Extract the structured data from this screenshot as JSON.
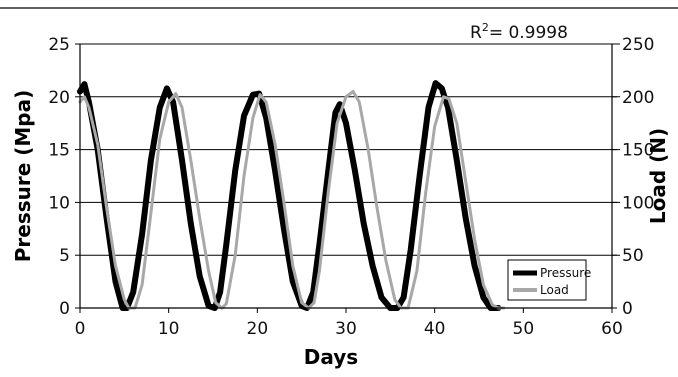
{
  "chart_data": {
    "type": "line",
    "annotation": {
      "label": "R",
      "sup": "2",
      "rest": "= 0.9998"
    },
    "xlabel": "Days",
    "ylabel_left": "Pressure (Mpa)",
    "ylabel_right": "Load (N)",
    "xlim": [
      0,
      60
    ],
    "ylim_left": [
      0,
      25
    ],
    "ylim_right": [
      0,
      250
    ],
    "x_ticks": [
      "0",
      "10",
      "20",
      "30",
      "40",
      "50",
      "60"
    ],
    "y_ticks_left": [
      "0",
      "5",
      "10",
      "15",
      "20",
      "25"
    ],
    "y_ticks_right": [
      "0",
      "50",
      "100",
      "150",
      "200",
      "250"
    ],
    "grid": "horizontal",
    "legend_position": "bottom-right",
    "series": [
      {
        "name": "Pressure",
        "axis": "left",
        "color": "#000000",
        "x": [
          0,
          0.5,
          1,
          2,
          3,
          4,
          4.8,
          5.3,
          6,
          7,
          8,
          9,
          9.8,
          10.5,
          11.5,
          12.5,
          13.5,
          14.5,
          15.2,
          15.8,
          16.5,
          17.5,
          18.5,
          19.5,
          20.2,
          21,
          22,
          23,
          24,
          25,
          25.6,
          26.3,
          27,
          28,
          28.8,
          29.3,
          30,
          31,
          32,
          33,
          34,
          35,
          35.8,
          36.5,
          37.3,
          38.3,
          39.3,
          40.1,
          40.8,
          41.5,
          42.5,
          43.5,
          44.5,
          45.5,
          46.3,
          47.2
        ],
        "y": [
          20.5,
          21.2,
          19.5,
          15,
          8.5,
          2.5,
          0,
          0,
          1.5,
          7,
          14,
          19,
          20.8,
          19.5,
          14,
          8,
          3,
          0.2,
          0,
          1.5,
          6,
          13,
          18.2,
          20.2,
          20.3,
          18,
          13,
          7.5,
          2.5,
          0.2,
          0,
          1.5,
          6,
          13,
          18.5,
          19.3,
          17.5,
          13,
          8,
          4,
          1,
          0,
          0,
          1,
          5.5,
          12.5,
          19,
          21.3,
          20.8,
          19,
          14,
          8.5,
          4,
          1,
          0,
          0
        ]
      },
      {
        "name": "Load",
        "axis": "right",
        "color": "#a8a8a8",
        "x": [
          0,
          0.5,
          1,
          2,
          3,
          4,
          5,
          5.5,
          6.2,
          7,
          8,
          9,
          10,
          10.8,
          11.5,
          12.5,
          13.5,
          14.5,
          15.3,
          16,
          16.5,
          17.5,
          18.5,
          19.5,
          20.3,
          21,
          22,
          23,
          24,
          25,
          25.8,
          26.4,
          27,
          28,
          29,
          30,
          30.8,
          31.5,
          32.5,
          33.5,
          34.5,
          35.5,
          36.2,
          37,
          38,
          39,
          40,
          41,
          41.6,
          42.5,
          43.5,
          44.5,
          45.5,
          46.5,
          47.2,
          47.8
        ],
        "y": [
          195,
          200,
          190,
          155,
          95,
          40,
          8,
          0,
          0,
          22,
          90,
          160,
          195,
          203,
          190,
          140,
          85,
          35,
          5,
          0,
          4,
          50,
          125,
          180,
          202,
          195,
          155,
          100,
          40,
          5,
          0,
          5,
          35,
          110,
          175,
          200,
          205,
          195,
          150,
          95,
          45,
          8,
          0,
          0,
          35,
          110,
          172,
          200,
          198,
          175,
          120,
          65,
          22,
          3,
          0,
          0
        ]
      }
    ]
  }
}
